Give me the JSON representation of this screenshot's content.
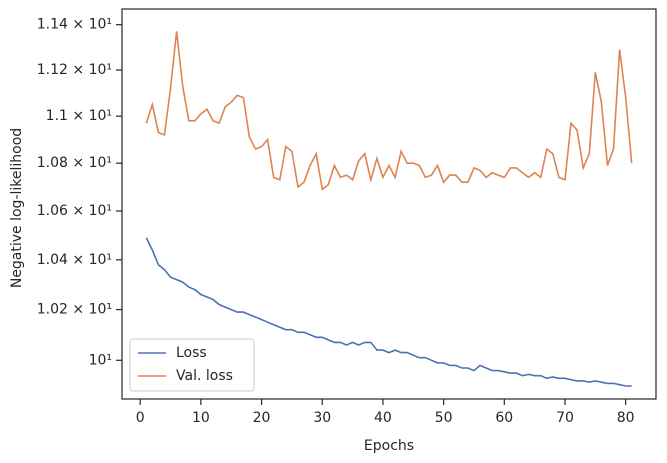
{
  "chart_data": {
    "type": "line",
    "x_label": "Epochs",
    "y_label": "Negative log-likelihood",
    "yscale": "log",
    "legend": "lower left",
    "xlim": [
      -3,
      85
    ],
    "ylim": [
      9.85,
      11.47
    ],
    "xticks": [
      0,
      10,
      20,
      30,
      40,
      50,
      60,
      70,
      80
    ],
    "yticks": [
      {
        "value": 10,
        "label": "10¹"
      },
      {
        "value": 10.2,
        "label": "1.02 × 10¹"
      },
      {
        "value": 10.4,
        "label": "1.04 × 10¹"
      },
      {
        "value": 10.6,
        "label": "1.06 × 10¹"
      },
      {
        "value": 10.8,
        "label": "1.08 × 10¹"
      },
      {
        "value": 11,
        "label": "1.1 × 10¹"
      },
      {
        "value": 11.2,
        "label": "1.12 × 10¹"
      },
      {
        "value": 11.4,
        "label": "1.14 × 10¹"
      }
    ],
    "x": [
      1,
      2,
      3,
      4,
      5,
      6,
      7,
      8,
      9,
      10,
      11,
      12,
      13,
      14,
      15,
      16,
      17,
      18,
      19,
      20,
      21,
      22,
      23,
      24,
      25,
      26,
      27,
      28,
      29,
      30,
      31,
      32,
      33,
      34,
      35,
      36,
      37,
      38,
      39,
      40,
      41,
      42,
      43,
      44,
      45,
      46,
      47,
      48,
      49,
      50,
      51,
      52,
      53,
      54,
      55,
      56,
      57,
      58,
      59,
      60,
      61,
      62,
      63,
      64,
      65,
      66,
      67,
      68,
      69,
      70,
      71,
      72,
      73,
      74,
      75,
      76,
      77,
      78,
      79,
      80,
      81
    ],
    "series": [
      {
        "name": "Loss",
        "color": "#4c72b0",
        "values": [
          10.49,
          10.44,
          10.38,
          10.36,
          10.33,
          10.32,
          10.31,
          10.29,
          10.28,
          10.26,
          10.25,
          10.24,
          10.22,
          10.21,
          10.2,
          10.19,
          10.19,
          10.18,
          10.17,
          10.16,
          10.15,
          10.14,
          10.13,
          10.12,
          10.12,
          10.11,
          10.11,
          10.1,
          10.09,
          10.09,
          10.08,
          10.07,
          10.07,
          10.06,
          10.07,
          10.06,
          10.07,
          10.07,
          10.04,
          10.04,
          10.03,
          10.04,
          10.03,
          10.03,
          10.02,
          10.01,
          10.01,
          10.0,
          9.99,
          9.99,
          9.98,
          9.98,
          9.97,
          9.97,
          9.96,
          9.98,
          9.97,
          9.96,
          9.96,
          9.955,
          9.95,
          9.95,
          9.94,
          9.945,
          9.94,
          9.94,
          9.93,
          9.935,
          9.93,
          9.93,
          9.925,
          9.92,
          9.92,
          9.915,
          9.92,
          9.915,
          9.91,
          9.91,
          9.905,
          9.9,
          9.9
        ]
      },
      {
        "name": "Val. loss",
        "color": "#dd8452",
        "values": [
          10.97,
          11.05,
          10.93,
          10.92,
          11.12,
          11.37,
          11.13,
          10.98,
          10.98,
          11.01,
          11.03,
          10.98,
          10.97,
          11.04,
          11.06,
          11.09,
          11.08,
          10.91,
          10.86,
          10.87,
          10.9,
          10.74,
          10.73,
          10.87,
          10.85,
          10.7,
          10.72,
          10.79,
          10.84,
          10.69,
          10.71,
          10.79,
          10.74,
          10.75,
          10.73,
          10.81,
          10.84,
          10.73,
          10.82,
          10.74,
          10.79,
          10.74,
          10.85,
          10.8,
          10.8,
          10.79,
          10.74,
          10.75,
          10.79,
          10.72,
          10.75,
          10.75,
          10.72,
          10.72,
          10.78,
          10.77,
          10.74,
          10.76,
          10.75,
          10.74,
          10.78,
          10.78,
          10.76,
          10.74,
          10.76,
          10.74,
          10.86,
          10.84,
          10.74,
          10.73,
          10.97,
          10.94,
          10.78,
          10.84,
          11.19,
          11.06,
          10.79,
          10.86,
          11.29,
          11.08,
          10.8
        ]
      }
    ]
  }
}
